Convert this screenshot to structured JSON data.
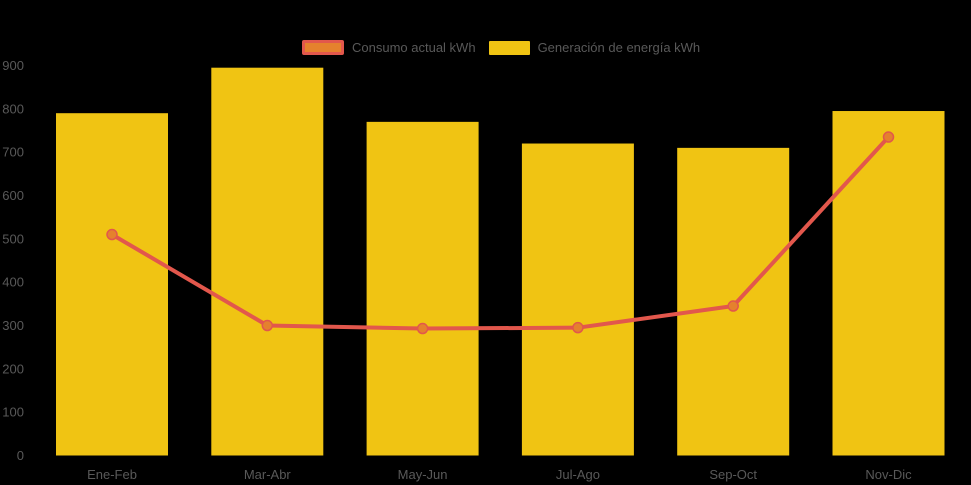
{
  "chart": {
    "background": "#000000",
    "text_color": "#595959",
    "legend": [
      {
        "label": "Consumo actual kWh",
        "swatch_fill": "#E5812D",
        "swatch_border": "#E2574C"
      },
      {
        "label": "Generación de energía kWh",
        "swatch_fill": "#F0C413",
        "swatch_border": ""
      }
    ]
  },
  "chart_data": {
    "type": "bar",
    "title": "",
    "xlabel": "",
    "ylabel": "",
    "categories": [
      "Ene-Feb",
      "Mar-Abr",
      "May-Jun",
      "Jul-Ago",
      "Sep-Oct",
      "Nov-Dic"
    ],
    "series": [
      {
        "name": "Generación de energía kWh",
        "type": "bar",
        "color": "#F0C413",
        "values": [
          790,
          895,
          770,
          720,
          710,
          795
        ]
      },
      {
        "name": "Consumo actual kWh",
        "type": "line",
        "color": "#E2574C",
        "marker_color": "#E5812D",
        "values": [
          510,
          300,
          293,
          295,
          345,
          735
        ]
      }
    ],
    "ylim": [
      0,
      900
    ],
    "ytick_interval": 100,
    "yticks": [
      0,
      100,
      200,
      300,
      400,
      500,
      600,
      700,
      800,
      900
    ],
    "grid": false,
    "legend_position": "top-center"
  }
}
